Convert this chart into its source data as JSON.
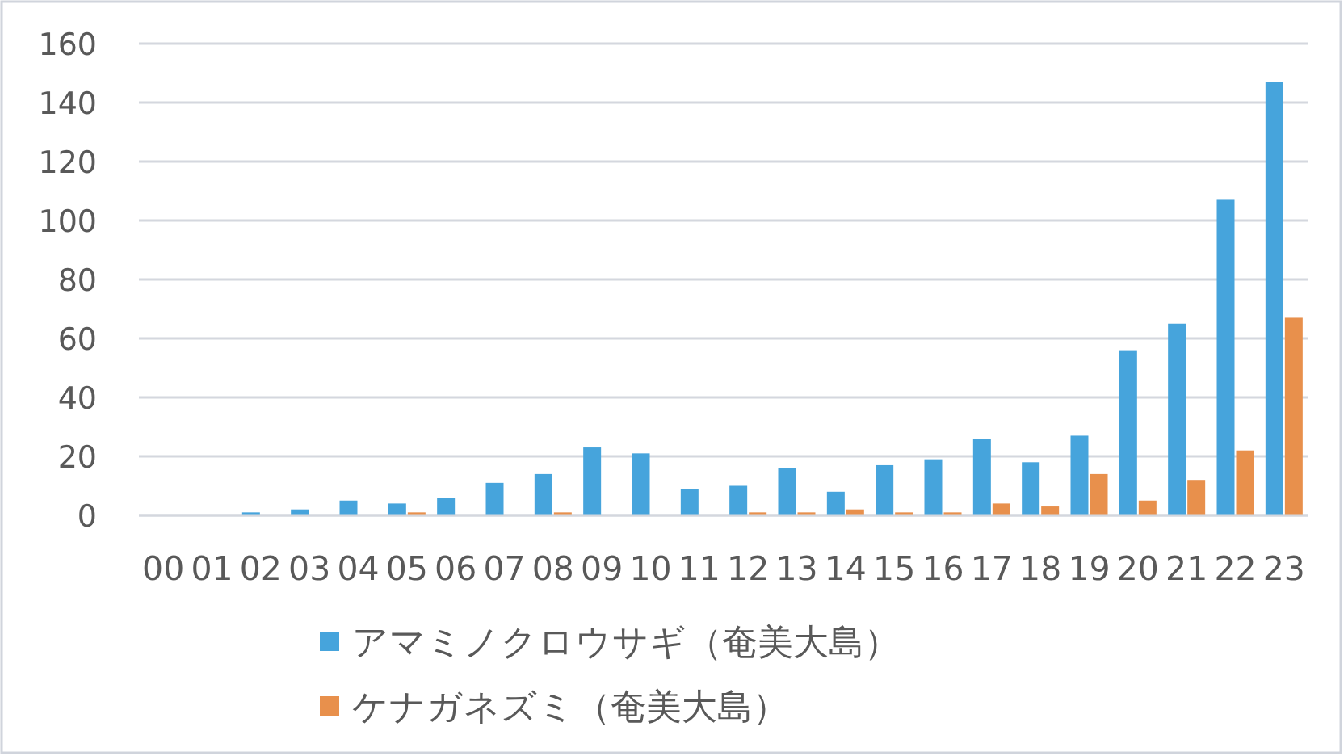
{
  "chart_data": {
    "type": "bar",
    "categories": [
      "00",
      "01",
      "02",
      "03",
      "04",
      "05",
      "06",
      "07",
      "08",
      "09",
      "10",
      "11",
      "12",
      "13",
      "14",
      "15",
      "16",
      "17",
      "18",
      "19",
      "20",
      "21",
      "22",
      "23"
    ],
    "series": [
      {
        "name": "アマミノクロウサギ（奄美大島）",
        "color": "#46a4dc",
        "values": [
          0,
          0,
          1,
          2,
          5,
          4,
          6,
          11,
          14,
          23,
          21,
          9,
          10,
          16,
          8,
          17,
          19,
          26,
          18,
          27,
          56,
          65,
          107,
          147
        ]
      },
      {
        "name": "ケナガネズミ（奄美大島）",
        "color": "#e8904c",
        "values": [
          0,
          0,
          0,
          0,
          0,
          1,
          0,
          0,
          1,
          0,
          0,
          0,
          1,
          1,
          2,
          1,
          1,
          4,
          3,
          14,
          5,
          12,
          22,
          67
        ]
      }
    ],
    "ylim": [
      0,
      160
    ],
    "yticks": [
      0,
      20,
      40,
      60,
      80,
      100,
      120,
      140,
      160
    ],
    "grid": "y",
    "legend": "bottom"
  }
}
